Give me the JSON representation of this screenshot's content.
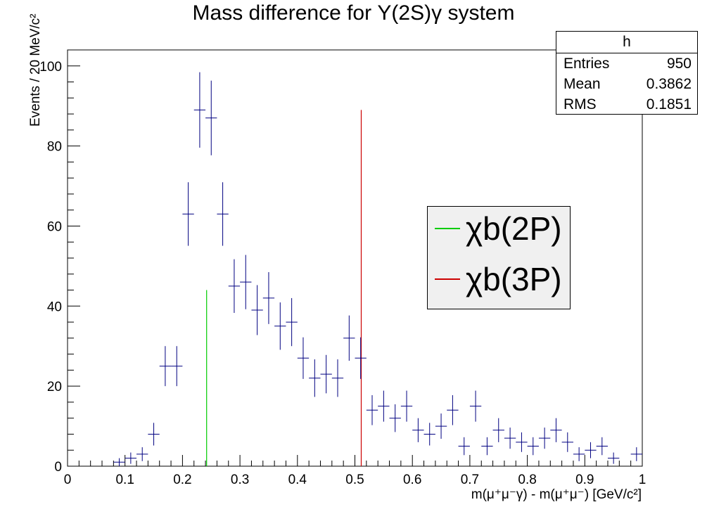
{
  "title_text": "Mass difference for Υ(2S)γ system",
  "axes": {
    "xlabel": "m(μ⁺μ⁻γ) - m(μ⁺μ⁻) [GeV/c²]",
    "ylabel": "Events / 20 MeV/c²",
    "x_ticks": [
      "0",
      "0.1",
      "0.2",
      "0.3",
      "0.4",
      "0.5",
      "0.6",
      "0.7",
      "0.8",
      "0.9",
      "1"
    ],
    "y_ticks": [
      "0",
      "20",
      "40",
      "60",
      "80",
      "100"
    ]
  },
  "stats": {
    "header": "h",
    "rows": [
      {
        "label": "Entries",
        "value": "950"
      },
      {
        "label": "Mean",
        "value": "0.3862"
      },
      {
        "label": "RMS",
        "value": "0.1851"
      }
    ]
  },
  "legend": {
    "entries": [
      {
        "label": "χb(2P)",
        "color": "#00cc00"
      },
      {
        "label": "χb(3P)",
        "color": "#cc0000"
      }
    ]
  },
  "colors": {
    "data": "#000080",
    "axis": "#000000"
  },
  "chart_data": {
    "type": "scatter",
    "title": "Mass difference for Υ(2S)γ system",
    "xlabel": "m(μ⁺μ⁻γ) - m(μ⁺μ⁻) [GeV/c²]",
    "ylabel": "Events / 20 MeV/c²",
    "xlim": [
      0,
      1
    ],
    "ylim": [
      0,
      104
    ],
    "bin_width": 0.02,
    "x": [
      0.09,
      0.11,
      0.13,
      0.15,
      0.17,
      0.19,
      0.21,
      0.23,
      0.25,
      0.27,
      0.29,
      0.31,
      0.33,
      0.35,
      0.37,
      0.39,
      0.41,
      0.43,
      0.45,
      0.47,
      0.49,
      0.51,
      0.53,
      0.55,
      0.57,
      0.59,
      0.61,
      0.63,
      0.65,
      0.67,
      0.69,
      0.71,
      0.73,
      0.75,
      0.77,
      0.79,
      0.81,
      0.83,
      0.85,
      0.87,
      0.89,
      0.91,
      0.93,
      0.95,
      0.99
    ],
    "y": [
      1,
      2,
      3,
      8,
      25,
      25,
      63,
      89,
      87,
      63,
      45,
      46,
      39,
      42,
      35,
      36,
      27,
      22,
      23,
      22,
      32,
      27,
      14,
      15,
      12,
      15,
      9,
      8,
      10,
      14,
      5,
      15,
      5,
      9,
      7,
      6,
      5,
      7,
      9,
      6,
      3,
      4,
      5,
      2,
      3
    ],
    "vlines": [
      {
        "name": "χb(2P)",
        "x": 0.242,
        "y": 44,
        "color": "#00cc00"
      },
      {
        "name": "χb(3P)",
        "x": 0.511,
        "y": 89,
        "color": "#cc0000"
      }
    ]
  }
}
